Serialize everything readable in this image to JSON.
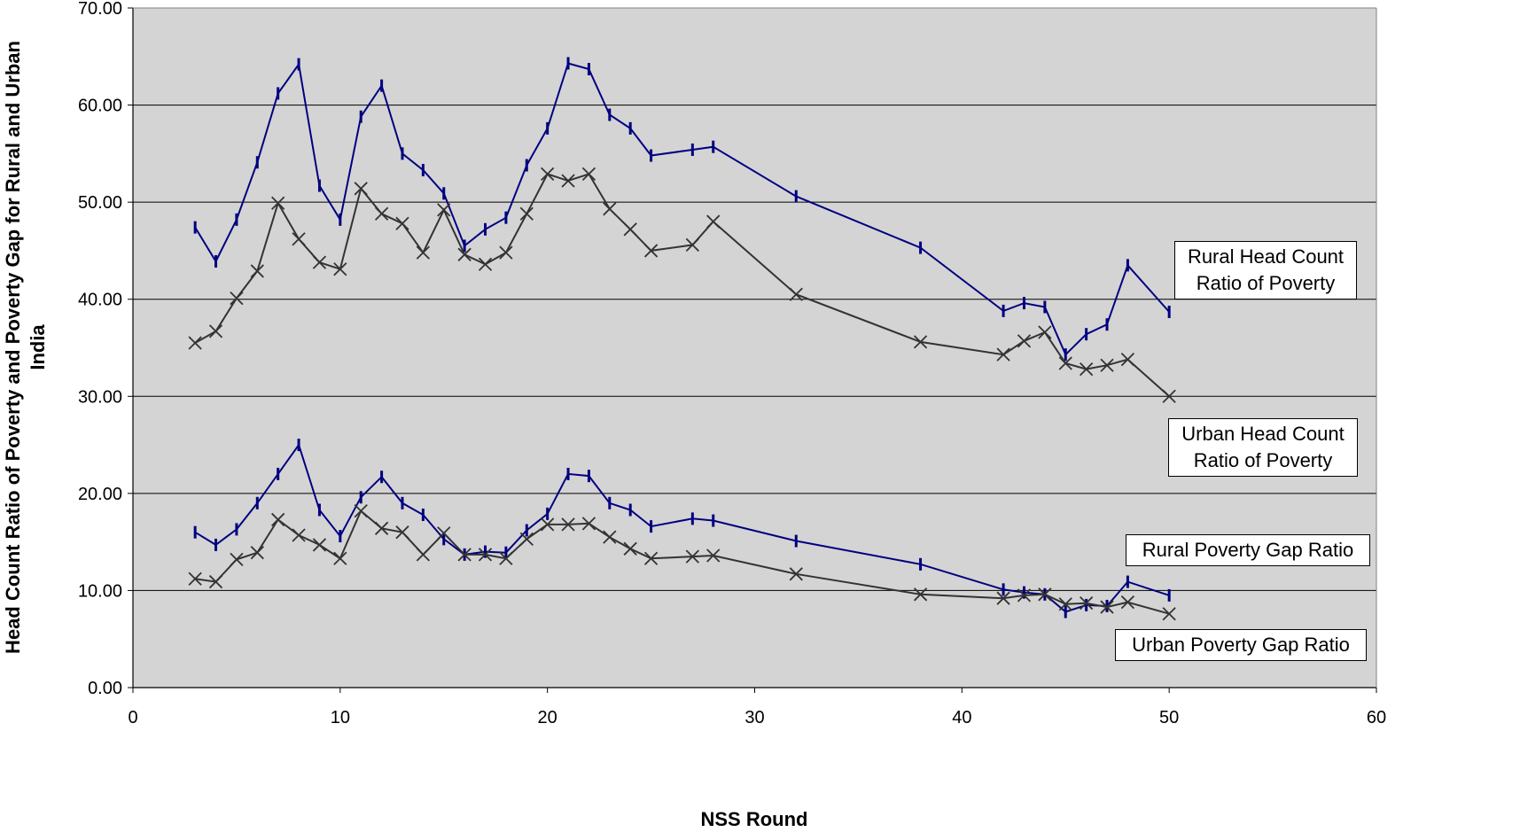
{
  "chart_data": {
    "type": "line",
    "title": "",
    "xlabel": "NSS Round",
    "ylabel": "Head Count Ratio of Poverty and Poverty Gap for Rural and Urban India",
    "xlim": [
      0,
      60
    ],
    "ylim": [
      0,
      70
    ],
    "x_ticks": [
      "0",
      "10",
      "20",
      "30",
      "40",
      "50",
      "60"
    ],
    "y_ticks": [
      "0.00",
      "10.00",
      "20.00",
      "30.00",
      "40.00",
      "50.00",
      "60.00",
      "70.00"
    ],
    "grid": "horizontal",
    "background": "#d4d4d4",
    "series": [
      {
        "name": "Rural Head Count Ratio of Poverty",
        "color": "#000080",
        "marker": "bar",
        "points": [
          [
            3,
            47.4
          ],
          [
            4,
            43.9
          ],
          [
            5,
            48.2
          ],
          [
            6,
            54.1
          ],
          [
            7,
            61.2
          ],
          [
            8,
            64.2
          ],
          [
            9,
            51.7
          ],
          [
            10,
            48.2
          ],
          [
            11,
            58.8
          ],
          [
            12,
            62.0
          ],
          [
            13,
            55.0
          ],
          [
            14,
            53.3
          ],
          [
            15,
            50.9
          ],
          [
            16,
            45.5
          ],
          [
            17,
            47.2
          ],
          [
            18,
            48.4
          ],
          [
            19,
            53.8
          ],
          [
            20,
            57.6
          ],
          [
            21,
            64.3
          ],
          [
            22,
            63.7
          ],
          [
            23,
            59.0
          ],
          [
            24,
            57.6
          ],
          [
            25,
            54.8
          ],
          [
            27,
            55.4
          ],
          [
            28,
            55.7
          ],
          [
            32,
            50.6
          ],
          [
            38,
            45.3
          ],
          [
            42,
            38.8
          ],
          [
            43,
            39.6
          ],
          [
            44,
            39.2
          ],
          [
            45,
            34.3
          ],
          [
            46,
            36.4
          ],
          [
            47,
            37.4
          ],
          [
            48,
            43.5
          ],
          [
            50,
            38.7
          ]
        ]
      },
      {
        "name": "Urban Head Count Ratio of Poverty",
        "color": "#333333",
        "marker": "x",
        "points": [
          [
            3,
            35.5
          ],
          [
            4,
            36.7
          ],
          [
            5,
            40.1
          ],
          [
            6,
            42.9
          ],
          [
            7,
            49.9
          ],
          [
            8,
            46.2
          ],
          [
            9,
            43.8
          ],
          [
            10,
            43.1
          ],
          [
            11,
            51.4
          ],
          [
            12,
            48.8
          ],
          [
            13,
            47.8
          ],
          [
            14,
            44.8
          ],
          [
            15,
            49.2
          ],
          [
            16,
            44.6
          ],
          [
            17,
            43.6
          ],
          [
            18,
            44.8
          ],
          [
            19,
            48.8
          ],
          [
            20,
            52.9
          ],
          [
            21,
            52.2
          ],
          [
            22,
            52.9
          ],
          [
            23,
            49.3
          ],
          [
            24,
            47.2
          ],
          [
            25,
            45.0
          ],
          [
            27,
            45.6
          ],
          [
            28,
            48.0
          ],
          [
            32,
            40.5
          ],
          [
            38,
            35.6
          ],
          [
            42,
            34.3
          ],
          [
            43,
            35.7
          ],
          [
            44,
            36.6
          ],
          [
            45,
            33.4
          ],
          [
            46,
            32.8
          ],
          [
            47,
            33.2
          ],
          [
            48,
            33.8
          ],
          [
            50,
            30.0
          ]
        ]
      },
      {
        "name": "Rural Poverty Gap Ratio",
        "color": "#000080",
        "marker": "bar",
        "points": [
          [
            3,
            16.0
          ],
          [
            4,
            14.7
          ],
          [
            5,
            16.3
          ],
          [
            6,
            19.0
          ],
          [
            7,
            22.0
          ],
          [
            8,
            25.0
          ],
          [
            9,
            18.3
          ],
          [
            10,
            15.6
          ],
          [
            11,
            19.6
          ],
          [
            12,
            21.7
          ],
          [
            13,
            19.0
          ],
          [
            14,
            17.8
          ],
          [
            15,
            15.3
          ],
          [
            16,
            13.7
          ],
          [
            17,
            14.0
          ],
          [
            18,
            13.9
          ],
          [
            19,
            16.2
          ],
          [
            20,
            17.9
          ],
          [
            21,
            22.0
          ],
          [
            22,
            21.8
          ],
          [
            23,
            19.0
          ],
          [
            24,
            18.3
          ],
          [
            25,
            16.6
          ],
          [
            27,
            17.4
          ],
          [
            28,
            17.2
          ],
          [
            32,
            15.1
          ],
          [
            38,
            12.7
          ],
          [
            42,
            10.1
          ],
          [
            43,
            9.8
          ],
          [
            44,
            9.6
          ],
          [
            45,
            7.8
          ],
          [
            46,
            8.5
          ],
          [
            47,
            8.4
          ],
          [
            48,
            10.9
          ],
          [
            50,
            9.5
          ]
        ]
      },
      {
        "name": "Urban Poverty Gap Ratio",
        "color": "#333333",
        "marker": "x",
        "points": [
          [
            3,
            11.2
          ],
          [
            4,
            10.9
          ],
          [
            5,
            13.2
          ],
          [
            6,
            13.9
          ],
          [
            7,
            17.3
          ],
          [
            8,
            15.7
          ],
          [
            9,
            14.7
          ],
          [
            10,
            13.3
          ],
          [
            11,
            18.2
          ],
          [
            12,
            16.4
          ],
          [
            13,
            16.0
          ],
          [
            14,
            13.7
          ],
          [
            15,
            15.9
          ],
          [
            16,
            13.7
          ],
          [
            17,
            13.7
          ],
          [
            18,
            13.3
          ],
          [
            19,
            15.3
          ],
          [
            20,
            16.8
          ],
          [
            21,
            16.8
          ],
          [
            22,
            16.9
          ],
          [
            23,
            15.5
          ],
          [
            24,
            14.3
          ],
          [
            25,
            13.3
          ],
          [
            27,
            13.5
          ],
          [
            28,
            13.6
          ],
          [
            32,
            11.7
          ],
          [
            38,
            9.6
          ],
          [
            42,
            9.2
          ],
          [
            43,
            9.5
          ],
          [
            44,
            9.6
          ],
          [
            45,
            8.6
          ],
          [
            46,
            8.7
          ],
          [
            47,
            8.3
          ],
          [
            48,
            8.8
          ],
          [
            50,
            7.6
          ]
        ]
      }
    ],
    "callouts": [
      {
        "series": 0,
        "label_lines": [
          "Rural Head Count",
          "Ratio of Poverty"
        ]
      },
      {
        "series": 1,
        "label_lines": [
          "Urban Head Count",
          "Ratio of Poverty"
        ]
      },
      {
        "series": 2,
        "label_lines": [
          "Rural Poverty Gap Ratio"
        ]
      },
      {
        "series": 3,
        "label_lines": [
          "Urban Poverty Gap Ratio"
        ]
      }
    ]
  }
}
